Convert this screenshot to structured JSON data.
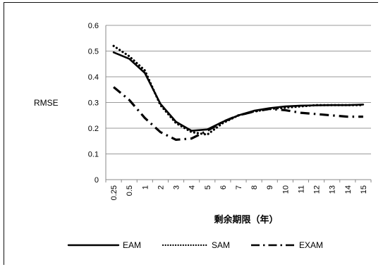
{
  "chart_data": {
    "type": "line",
    "xlabel": "剩余期限（年）",
    "ylabel": "RMSE",
    "ylim": [
      0,
      0.6
    ],
    "yticks": [
      "0",
      "0.1",
      "0.2",
      "0.3",
      "0.4",
      "0.5",
      "0.6"
    ],
    "categories": [
      "0.25",
      "0.5",
      "1",
      "2",
      "3",
      "4",
      "5",
      "6",
      "7",
      "8",
      "9",
      "10",
      "11",
      "12",
      "13",
      "14",
      "15"
    ],
    "grid": "horizontal",
    "legend_position": "bottom",
    "series": [
      {
        "name": "EAM",
        "style": "solid",
        "color": "#000000",
        "values": [
          0.495,
          0.47,
          0.415,
          0.295,
          0.225,
          0.19,
          0.195,
          0.225,
          0.25,
          0.268,
          0.278,
          0.285,
          0.288,
          0.289,
          0.29,
          0.29,
          0.292
        ]
      },
      {
        "name": "SAM",
        "style": "dotted",
        "color": "#000000",
        "values": [
          0.52,
          0.48,
          0.425,
          0.29,
          0.22,
          0.185,
          0.175,
          0.22,
          0.25,
          0.265,
          0.275,
          0.28,
          0.285,
          0.29,
          0.29,
          0.29,
          0.29
        ]
      },
      {
        "name": "EXAM",
        "style": "dashdot",
        "color": "#000000",
        "values": [
          0.36,
          0.31,
          0.24,
          0.185,
          0.155,
          0.16,
          0.19,
          0.225,
          0.25,
          0.265,
          0.275,
          0.27,
          0.26,
          0.255,
          0.25,
          0.245,
          0.245
        ]
      }
    ]
  }
}
